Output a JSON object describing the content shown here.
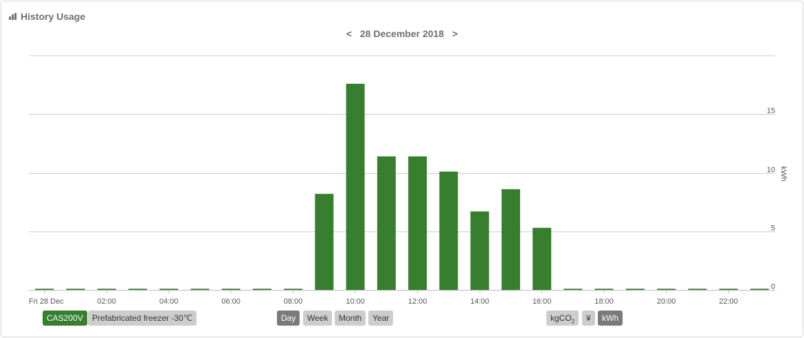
{
  "header": {
    "title": "History Usage",
    "date_label": "28 December 2018",
    "prev_label": "<",
    "next_label": ">"
  },
  "chart_data": {
    "type": "bar",
    "x_tick_labels": [
      "Fri 28 Dec",
      "02:00",
      "04:00",
      "06:00",
      "08:00",
      "10:00",
      "12:00",
      "14:00",
      "16:00",
      "18:00",
      "20:00",
      "22:00"
    ],
    "hours": [
      "00:00",
      "01:00",
      "02:00",
      "03:00",
      "04:00",
      "05:00",
      "06:00",
      "07:00",
      "08:00",
      "09:00",
      "10:00",
      "11:00",
      "12:00",
      "13:00",
      "14:00",
      "15:00",
      "16:00",
      "17:00",
      "18:00",
      "19:00",
      "20:00",
      "21:00",
      "22:00",
      "23:00"
    ],
    "values": [
      0.1,
      0.1,
      0.1,
      0.1,
      0.1,
      0.1,
      0.1,
      0.1,
      0.1,
      8.2,
      17.6,
      11.4,
      11.4,
      10.1,
      6.7,
      8.6,
      5.3,
      0.1,
      0.1,
      0.1,
      0.1,
      0.1,
      0.1,
      0.1
    ],
    "ylabel": "kWh",
    "y_ticks": [
      0,
      5,
      10,
      15
    ],
    "ylim": [
      0,
      20
    ],
    "bar_color": "#377f2f",
    "y_axis_position": "right",
    "grid": true
  },
  "footer": {
    "device_label": "CAS200V",
    "device_name": "Prefabricated freezer -30℃",
    "periods": [
      "Day",
      "Week",
      "Month",
      "Year"
    ],
    "active_period": "Day",
    "unit_co2_main": "kgCO",
    "unit_co2_sub": "2",
    "unit_yen": "¥",
    "unit_kwh": "kWh",
    "active_unit": "kWh"
  }
}
